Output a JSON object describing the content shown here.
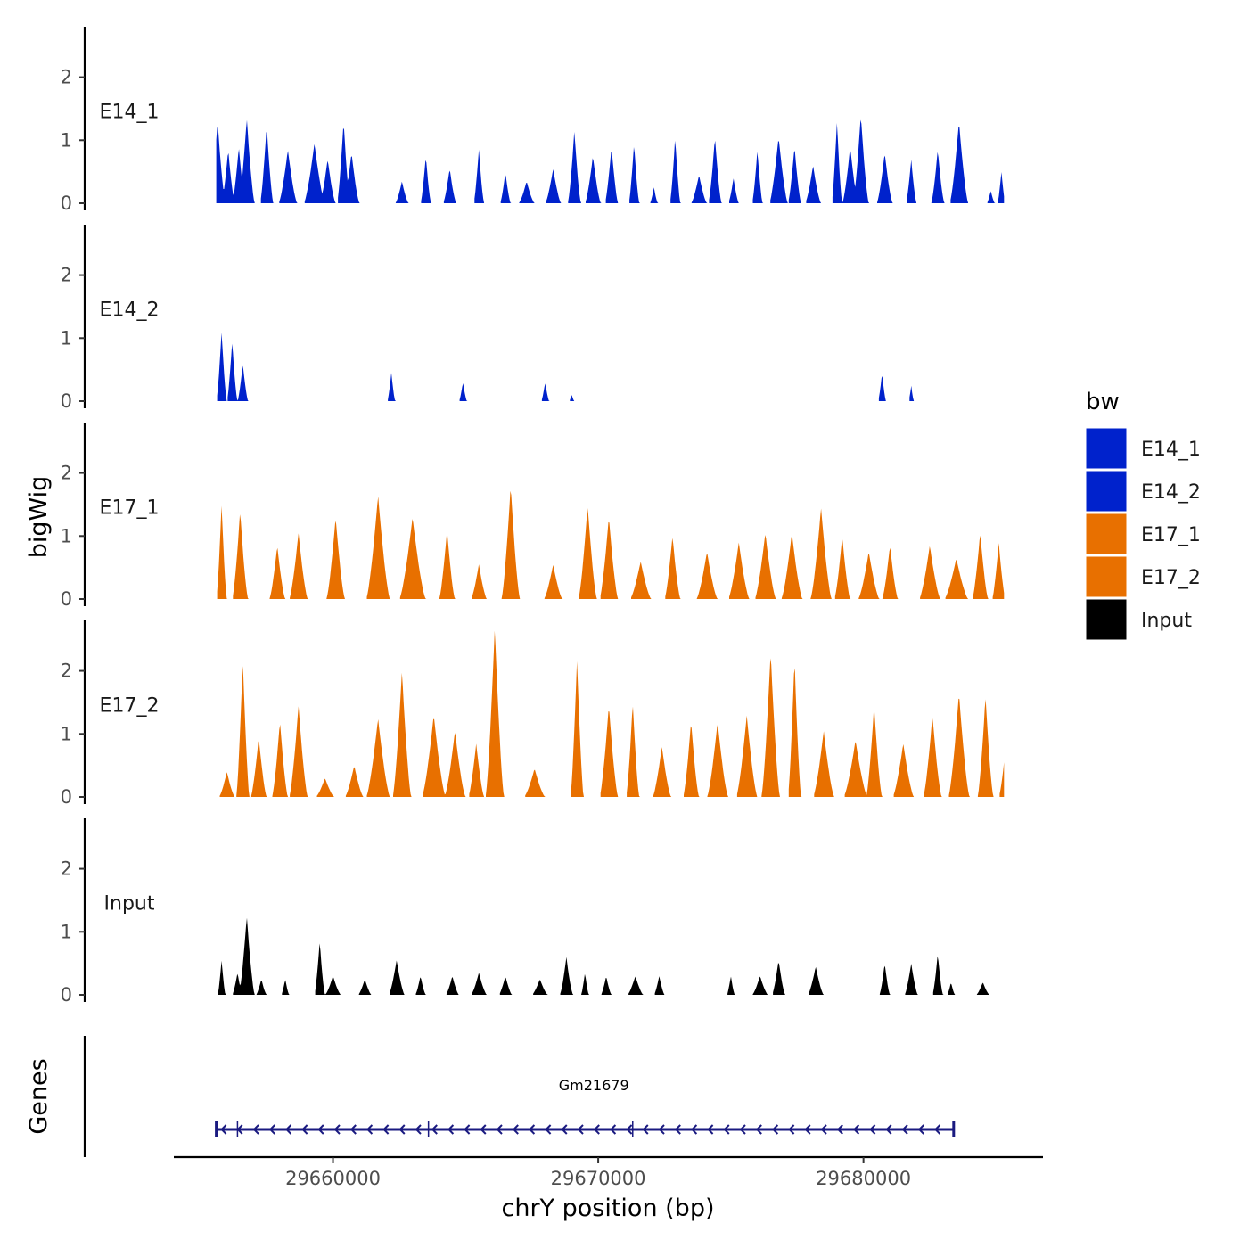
{
  "chart_data": {
    "type": "area",
    "ylabel": "bigWig",
    "xlabel": "chrY position (bp)",
    "xlim": [
      29654000,
      29686700
    ],
    "x_ticks": [
      29660000,
      29670000,
      29680000
    ],
    "x_tick_labels": [
      "29660000",
      "29670000",
      "29680000"
    ],
    "ylim": [
      0,
      2.8
    ],
    "y_ticks": [
      0,
      1,
      2
    ],
    "y_tick_labels": [
      "0",
      "1",
      "2"
    ],
    "track_range": [
      29655600,
      29685300
    ],
    "series": [
      {
        "name": "E14_1",
        "color": "#0022cc",
        "peaks": [
          [
            29655650,
            1.3,
            300
          ],
          [
            29656050,
            0.85,
            250
          ],
          [
            29656450,
            0.9,
            250
          ],
          [
            29656750,
            1.35,
            300
          ],
          [
            29657500,
            1.25,
            250
          ],
          [
            29658300,
            0.85,
            350
          ],
          [
            29659300,
            0.95,
            400
          ],
          [
            29659800,
            0.7,
            300
          ],
          [
            29660400,
            1.3,
            250
          ],
          [
            29660700,
            0.8,
            300
          ],
          [
            29662600,
            0.35,
            250
          ],
          [
            29663500,
            0.75,
            200
          ],
          [
            29664400,
            0.55,
            250
          ],
          [
            29665500,
            0.85,
            200
          ],
          [
            29666500,
            0.5,
            200
          ],
          [
            29667300,
            0.35,
            300
          ],
          [
            29668300,
            0.55,
            300
          ],
          [
            29669100,
            1.15,
            250
          ],
          [
            29669800,
            0.75,
            300
          ],
          [
            29670500,
            0.9,
            250
          ],
          [
            29671350,
            0.95,
            200
          ],
          [
            29672100,
            0.25,
            150
          ],
          [
            29672900,
            1.05,
            200
          ],
          [
            29673800,
            0.45,
            300
          ],
          [
            29674400,
            1.05,
            250
          ],
          [
            29675100,
            0.4,
            200
          ],
          [
            29676000,
            0.85,
            200
          ],
          [
            29676800,
            1.05,
            350
          ],
          [
            29677400,
            0.9,
            250
          ],
          [
            29678100,
            0.6,
            300
          ],
          [
            29679000,
            1.3,
            200
          ],
          [
            29679500,
            0.9,
            300
          ],
          [
            29679900,
            1.4,
            300
          ],
          [
            29680800,
            0.8,
            300
          ],
          [
            29681800,
            0.7,
            200
          ],
          [
            29682800,
            0.85,
            250
          ],
          [
            29683600,
            1.3,
            350
          ],
          [
            29684800,
            0.2,
            150
          ],
          [
            29685200,
            0.5,
            150
          ]
        ]
      },
      {
        "name": "E14_2",
        "color": "#0022cc",
        "peaks": [
          [
            29655800,
            1.1,
            200
          ],
          [
            29656200,
            0.95,
            200
          ],
          [
            29656600,
            0.6,
            200
          ],
          [
            29662200,
            0.45,
            150
          ],
          [
            29664900,
            0.3,
            150
          ],
          [
            29668000,
            0.3,
            150
          ],
          [
            29669000,
            0.1,
            100
          ],
          [
            29680700,
            0.45,
            150
          ],
          [
            29681800,
            0.25,
            100
          ]
        ]
      },
      {
        "name": "E17_1",
        "color": "#e87000",
        "peaks": [
          [
            29655800,
            1.5,
            200
          ],
          [
            29656500,
            1.4,
            300
          ],
          [
            29657900,
            0.85,
            300
          ],
          [
            29658700,
            1.05,
            350
          ],
          [
            29660100,
            1.3,
            350
          ],
          [
            29661700,
            1.65,
            450
          ],
          [
            29663000,
            1.3,
            500
          ],
          [
            29664300,
            1.1,
            300
          ],
          [
            29665500,
            0.55,
            300
          ],
          [
            29666700,
            1.8,
            350
          ],
          [
            29668300,
            0.55,
            350
          ],
          [
            29669600,
            1.5,
            350
          ],
          [
            29670400,
            1.3,
            350
          ],
          [
            29671600,
            0.6,
            400
          ],
          [
            29672800,
            1.0,
            300
          ],
          [
            29674100,
            0.75,
            400
          ],
          [
            29675300,
            0.9,
            400
          ],
          [
            29676300,
            1.05,
            400
          ],
          [
            29677300,
            1.05,
            400
          ],
          [
            29678400,
            1.45,
            400
          ],
          [
            29679200,
            1.0,
            300
          ],
          [
            29680200,
            0.75,
            400
          ],
          [
            29681000,
            0.85,
            300
          ],
          [
            29682500,
            0.85,
            400
          ],
          [
            29683500,
            0.65,
            450
          ],
          [
            29684400,
            1.05,
            300
          ],
          [
            29685100,
            0.9,
            250
          ]
        ]
      },
      {
        "name": "E17_2",
        "color": "#e87000",
        "peaks": [
          [
            29656000,
            0.4,
            300
          ],
          [
            29656600,
            2.2,
            250
          ],
          [
            29657200,
            0.95,
            300
          ],
          [
            29658000,
            1.2,
            300
          ],
          [
            29658700,
            1.45,
            350
          ],
          [
            29659700,
            0.3,
            350
          ],
          [
            29660800,
            0.5,
            350
          ],
          [
            29661700,
            1.25,
            450
          ],
          [
            29662600,
            2.0,
            350
          ],
          [
            29663800,
            1.3,
            450
          ],
          [
            29664600,
            1.05,
            400
          ],
          [
            29665400,
            0.85,
            300
          ],
          [
            29666100,
            2.7,
            350
          ],
          [
            29667600,
            0.45,
            400
          ],
          [
            29669200,
            2.2,
            250
          ],
          [
            29670400,
            1.45,
            350
          ],
          [
            29671300,
            1.5,
            250
          ],
          [
            29672400,
            0.8,
            350
          ],
          [
            29673500,
            1.2,
            300
          ],
          [
            29674500,
            1.2,
            400
          ],
          [
            29675600,
            1.3,
            400
          ],
          [
            29676500,
            2.3,
            350
          ],
          [
            29677400,
            2.2,
            250
          ],
          [
            29678500,
            1.05,
            400
          ],
          [
            29679700,
            0.9,
            450
          ],
          [
            29680400,
            1.45,
            300
          ],
          [
            29681500,
            0.85,
            400
          ],
          [
            29682600,
            1.3,
            350
          ],
          [
            29683600,
            1.65,
            400
          ],
          [
            29684600,
            1.6,
            300
          ],
          [
            29685300,
            0.55,
            200
          ]
        ]
      },
      {
        "name": "Input",
        "color": "#000000",
        "peaks": [
          [
            29655800,
            0.55,
            150
          ],
          [
            29656400,
            0.35,
            200
          ],
          [
            29656750,
            1.25,
            300
          ],
          [
            29657300,
            0.25,
            200
          ],
          [
            29658200,
            0.25,
            150
          ],
          [
            29659500,
            0.85,
            200
          ],
          [
            29660000,
            0.3,
            300
          ],
          [
            29661200,
            0.25,
            250
          ],
          [
            29662400,
            0.55,
            300
          ],
          [
            29663300,
            0.3,
            200
          ],
          [
            29664500,
            0.3,
            250
          ],
          [
            29665500,
            0.35,
            300
          ],
          [
            29666500,
            0.3,
            250
          ],
          [
            29667800,
            0.25,
            300
          ],
          [
            29668800,
            0.6,
            250
          ],
          [
            29669500,
            0.35,
            150
          ],
          [
            29670300,
            0.3,
            200
          ],
          [
            29671400,
            0.3,
            300
          ],
          [
            29672300,
            0.3,
            200
          ],
          [
            29675000,
            0.3,
            150
          ],
          [
            29676100,
            0.3,
            300
          ],
          [
            29676800,
            0.55,
            250
          ],
          [
            29678200,
            0.45,
            300
          ],
          [
            29680800,
            0.5,
            200
          ],
          [
            29681800,
            0.5,
            250
          ],
          [
            29682800,
            0.65,
            200
          ],
          [
            29683300,
            0.2,
            150
          ],
          [
            29684500,
            0.2,
            250
          ]
        ]
      }
    ],
    "genes_track": {
      "label": "Genes",
      "gene_name": "Gm21679",
      "start": 29655600,
      "end": 29683400,
      "strand": "-",
      "boundaries": [
        29656400,
        29663600,
        29671300
      ],
      "color": "#1a1a80"
    },
    "legend": {
      "title": "bw",
      "placement": "right",
      "entries": [
        {
          "label": "E14_1",
          "color": "#0022cc"
        },
        {
          "label": "E14_2",
          "color": "#0022cc"
        },
        {
          "label": "E17_1",
          "color": "#e87000"
        },
        {
          "label": "E17_2",
          "color": "#e87000"
        },
        {
          "label": "Input",
          "color": "#000000"
        }
      ]
    }
  }
}
